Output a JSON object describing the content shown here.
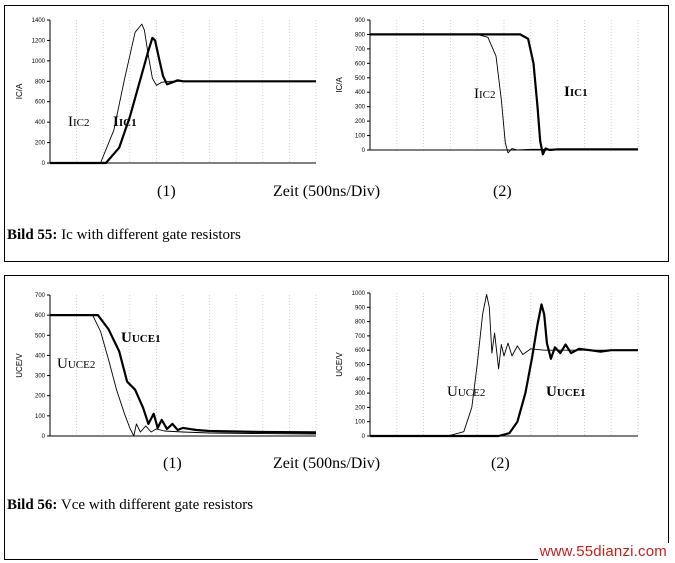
{
  "captions": [
    {
      "title": "Bild 55:",
      "text": " Ic with different gate resistors"
    },
    {
      "title": "Bild 56:",
      "text": " Vce with different gate resistors"
    }
  ],
  "axis_center_labels": [
    "Zeit (500ns/Div)",
    "Zeit (500ns/Div)"
  ],
  "sub_labels": [
    "(1)",
    "(2)",
    "(1)",
    "(2)"
  ],
  "watermark": "www.55dianzi.com",
  "colors": {
    "curve1": "#000000",
    "curve2": "#000000",
    "grid": "#c8c8c8",
    "watermark": "#c8201a"
  },
  "chart_data": [
    {
      "type": "line",
      "id": "ic-1",
      "title": "(1)",
      "xlabel": "Zeit (500ns/Div)",
      "ylabel": "IC/A",
      "ylim": [
        0,
        1400
      ],
      "xlim": [
        0,
        10
      ],
      "yticks": [
        0,
        200,
        400,
        600,
        800,
        1000,
        1200,
        1400
      ],
      "series": [
        {
          "name": "IC2",
          "label": "IC2",
          "bold": false,
          "x": [
            0,
            1.9,
            2.4,
            2.8,
            3.2,
            3.45,
            3.55,
            3.7,
            3.85,
            4.0,
            4.2,
            4.5,
            5,
            6,
            10
          ],
          "y": [
            0,
            0,
            320,
            820,
            1280,
            1360,
            1300,
            1050,
            830,
            760,
            790,
            800,
            800,
            800,
            800
          ]
        },
        {
          "name": "IC1",
          "label": "IC1",
          "bold": true,
          "x": [
            0,
            2.1,
            2.6,
            3.0,
            3.4,
            3.7,
            3.85,
            3.95,
            4.1,
            4.25,
            4.4,
            4.6,
            4.8,
            5,
            6,
            10
          ],
          "y": [
            0,
            0,
            150,
            450,
            820,
            1100,
            1225,
            1200,
            1020,
            850,
            770,
            790,
            810,
            800,
            800,
            800
          ]
        }
      ]
    },
    {
      "type": "line",
      "id": "ic-2",
      "title": "(2)",
      "ylabel": "IC/A",
      "ylim": [
        0,
        900
      ],
      "xlim": [
        0,
        10
      ],
      "yticks": [
        0,
        100,
        200,
        300,
        400,
        500,
        600,
        700,
        800,
        900
      ],
      "series": [
        {
          "name": "IC2",
          "label": "IC2",
          "bold": false,
          "x": [
            0,
            4.0,
            4.4,
            4.7,
            4.9,
            5.05,
            5.15,
            5.3,
            5.5,
            6,
            10
          ],
          "y": [
            800,
            800,
            780,
            650,
            350,
            50,
            -20,
            10,
            0,
            5,
            5
          ]
        },
        {
          "name": "IC1",
          "label": "IC1",
          "bold": true,
          "x": [
            0,
            5.6,
            5.9,
            6.1,
            6.25,
            6.35,
            6.45,
            6.55,
            6.7,
            7,
            8,
            10
          ],
          "y": [
            800,
            800,
            770,
            600,
            300,
            60,
            -30,
            10,
            0,
            5,
            5,
            5
          ]
        }
      ]
    },
    {
      "type": "line",
      "id": "vce-1",
      "title": "(1)",
      "xlabel": "Zeit (500ns/Div)",
      "ylabel": "UCE/V",
      "ylim": [
        0,
        700
      ],
      "xlim": [
        0,
        10
      ],
      "yticks": [
        0,
        100,
        200,
        300,
        400,
        500,
        600,
        700
      ],
      "series": [
        {
          "name": "UCE2",
          "label": "UCE2",
          "bold": false,
          "x": [
            0,
            1.6,
            1.9,
            2.2,
            2.5,
            2.8,
            3.0,
            3.15,
            3.25,
            3.4,
            3.6,
            3.8,
            4.0,
            4.3,
            5,
            6,
            8,
            10
          ],
          "y": [
            600,
            600,
            520,
            380,
            230,
            110,
            40,
            0,
            60,
            20,
            50,
            20,
            35,
            25,
            20,
            15,
            12,
            10
          ]
        },
        {
          "name": "UCE1",
          "label": "UCE1",
          "bold": true,
          "x": [
            0,
            1.8,
            2.2,
            2.6,
            2.9,
            3.2,
            3.5,
            3.7,
            3.9,
            4.05,
            4.2,
            4.4,
            4.6,
            4.8,
            5.0,
            5.5,
            6,
            8,
            10
          ],
          "y": [
            600,
            600,
            530,
            420,
            270,
            230,
            140,
            60,
            110,
            40,
            80,
            35,
            60,
            30,
            40,
            30,
            25,
            20,
            18
          ]
        }
      ]
    },
    {
      "type": "line",
      "id": "vce-2",
      "title": "(2)",
      "ylabel": "UCE/V",
      "ylim": [
        0,
        1000
      ],
      "xlim": [
        0,
        10
      ],
      "yticks": [
        0,
        100,
        200,
        300,
        400,
        500,
        600,
        700,
        800,
        900,
        1000
      ],
      "series": [
        {
          "name": "UCE2",
          "label": "UCE2",
          "bold": false,
          "x": [
            0,
            3.0,
            3.5,
            3.8,
            4.0,
            4.2,
            4.35,
            4.45,
            4.55,
            4.65,
            4.8,
            4.9,
            5.0,
            5.15,
            5.3,
            5.5,
            5.7,
            6.0,
            6.5,
            7,
            8,
            10
          ],
          "y": [
            0,
            5,
            30,
            200,
            500,
            850,
            990,
            900,
            580,
            720,
            470,
            640,
            560,
            650,
            560,
            630,
            570,
            610,
            600,
            600,
            600,
            600
          ]
        },
        {
          "name": "UCE1",
          "label": "UCE1",
          "bold": true,
          "x": [
            0,
            4.8,
            5.2,
            5.5,
            5.8,
            6.05,
            6.25,
            6.4,
            6.5,
            6.6,
            6.75,
            6.9,
            7.1,
            7.3,
            7.5,
            7.8,
            8.2,
            8.6,
            9,
            10
          ],
          "y": [
            0,
            0,
            20,
            100,
            300,
            550,
            780,
            920,
            850,
            650,
            540,
            620,
            580,
            640,
            580,
            610,
            600,
            590,
            600,
            600
          ]
        }
      ]
    }
  ]
}
